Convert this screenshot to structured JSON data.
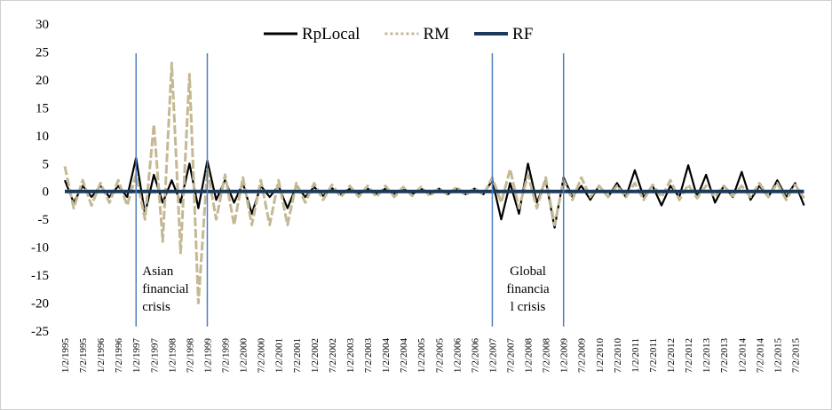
{
  "chart_data": {
    "type": "line",
    "legend": "top",
    "categories": [
      "1/2/1995",
      null,
      "7/2/1995",
      null,
      "1/2/1996",
      null,
      "7/2/1996",
      null,
      "1/2/1997",
      null,
      "7/2/1997",
      null,
      "1/2/1998",
      null,
      "7/2/1998",
      null,
      "1/2/1999",
      null,
      "7/2/1999",
      null,
      "1/2/2000",
      null,
      "7/2/2000",
      null,
      "1/2/2001",
      null,
      "7/2/2001",
      null,
      "1/2/2002",
      null,
      "7/2/2002",
      null,
      "1/2/2003",
      null,
      "7/2/2003",
      null,
      "1/2/2004",
      null,
      "7/2/2004",
      null,
      "1/2/2005",
      null,
      "7/2/2005",
      null,
      "1/2/2006",
      null,
      "7/2/2006",
      null,
      "1/2/2007",
      null,
      "7/2/2007",
      null,
      "1/2/2008",
      null,
      "7/2/2008",
      null,
      "1/2/2009",
      null,
      "7/2/2009",
      null,
      "1/2/2010",
      null,
      "7/2/2010",
      null,
      "1/2/2011",
      null,
      "7/2/2011",
      null,
      "1/2/2012",
      null,
      "7/2/2012",
      null,
      "1/2/2013",
      null,
      "7/2/2013",
      null,
      "1/2/2014",
      null,
      "7/2/2014",
      null,
      "1/2/2015",
      null,
      "7/2/2015",
      null
    ],
    "series": [
      {
        "name": "RpLocal",
        "color": "#000000",
        "style": "solid",
        "values": [
          2,
          -2,
          1,
          -1,
          1,
          -1,
          1,
          -1,
          6,
          -4,
          3,
          -2,
          2,
          -2,
          5,
          -3,
          5.5,
          -1.5,
          2,
          -2,
          1.5,
          -4,
          1,
          -1,
          1,
          -3,
          1,
          -1,
          0.8,
          -0.8,
          0.6,
          -0.6,
          0.5,
          -0.5,
          0.5,
          -0.5,
          0.5,
          -0.5,
          0.5,
          -0.5,
          0.5,
          -0.5,
          0.5,
          -0.5,
          0.5,
          -0.5,
          0.5,
          -0.5,
          2,
          -5,
          1.5,
          -4,
          5,
          -2,
          2,
          -6.5,
          2.5,
          -1,
          1,
          -1.5,
          1,
          -1,
          1.5,
          -1,
          3.8,
          -1,
          1,
          -2.5,
          1,
          -1,
          4.7,
          -1,
          3,
          -2,
          1,
          -1,
          3.5,
          -1.5,
          1,
          -1,
          2,
          -1,
          1.5,
          -2.5
        ]
      },
      {
        "name": "RM",
        "color": "#c4b993",
        "style": "dashed",
        "values": [
          4.5,
          -3,
          2,
          -2.5,
          1.5,
          -2,
          2,
          -2.5,
          3,
          -5,
          12,
          -9,
          23,
          -11,
          21,
          -20,
          4,
          -5,
          3,
          -6,
          2.5,
          -6,
          2,
          -6,
          2,
          -6,
          1.5,
          -2,
          1.5,
          -1.5,
          1.2,
          -1,
          1,
          -1,
          1,
          -1,
          1,
          -1,
          0.8,
          -0.8,
          0.8,
          -0.8,
          0.6,
          -0.6,
          0.8,
          -0.7,
          0.6,
          -0.6,
          2.5,
          -2,
          4,
          -3,
          3,
          -3,
          2.5,
          -6,
          2,
          -1.5,
          2.5,
          -1,
          1,
          -1,
          1,
          -1,
          1.5,
          -1.5,
          1.2,
          -1,
          2,
          -1.5,
          1.2,
          -1.2,
          1,
          -1,
          1,
          -0.8,
          1,
          -1,
          1.5,
          -1,
          1.5,
          -1.5,
          1.2,
          -1.2
        ]
      },
      {
        "name": "RF",
        "color": "#1c3a5c",
        "style": "thick",
        "values": [
          0,
          0,
          0,
          0,
          0,
          0,
          0,
          0,
          0,
          0,
          0,
          0,
          0,
          0,
          0,
          0,
          0,
          0,
          0,
          0,
          0,
          0,
          0,
          0,
          0,
          0,
          0,
          0,
          0,
          0,
          0,
          0,
          0,
          0,
          0,
          0,
          0,
          0,
          0,
          0,
          0,
          0,
          0,
          0,
          0,
          0,
          0,
          0,
          0,
          0,
          0,
          0,
          0,
          0,
          0,
          0,
          0,
          0,
          0,
          0,
          0,
          0,
          0,
          0,
          0,
          0,
          0,
          0,
          0,
          0,
          0,
          0,
          0,
          0,
          0,
          0,
          0,
          0,
          0,
          0,
          0,
          0,
          0,
          0
        ]
      }
    ],
    "ylim": [
      -25,
      30
    ],
    "yticks": [
      -25,
      -20,
      -15,
      -10,
      -5,
      0,
      5,
      10,
      15,
      20,
      25,
      30
    ],
    "annotations": [
      {
        "text": [
          "Asian",
          "financial",
          "crisis"
        ],
        "start": "1/2/1997",
        "end": "1/2/1999",
        "color": "#4a7fc1"
      },
      {
        "text": [
          "Global",
          "financia",
          "l crisis"
        ],
        "start": "1/2/2007",
        "end": "1/2/2009",
        "color": "#4a7fc1"
      }
    ]
  }
}
